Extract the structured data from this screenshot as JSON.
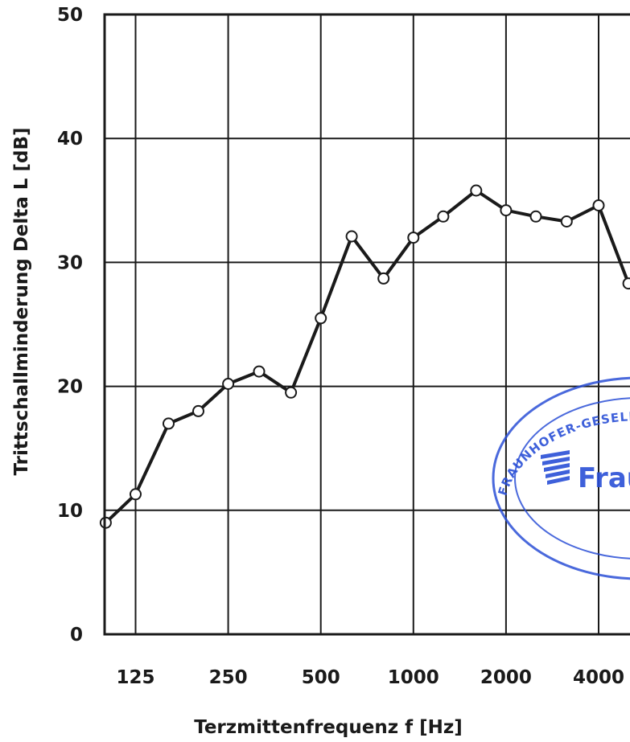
{
  "chart_data": {
    "type": "line",
    "title": "",
    "xlabel": "Terzmittenfrequenz f [Hz]",
    "ylabel": "Trittschallminderung Delta L [dB]",
    "xscale": "log",
    "xlim": [
      90,
      5000
    ],
    "ylim": [
      0,
      50
    ],
    "yticks": [
      0,
      10,
      20,
      30,
      40,
      50
    ],
    "xticks": [
      125,
      250,
      500,
      1000,
      2000,
      4000
    ],
    "x_tick_labels": [
      "125",
      "250",
      "500",
      "1000",
      "2000",
      "4000"
    ],
    "grid": true,
    "legend": "none",
    "series": [
      {
        "x": [
          100,
          125,
          160,
          200,
          250,
          315,
          400,
          500,
          630,
          800,
          1000,
          1250,
          1600,
          2000,
          2500,
          3150,
          4000,
          5000
        ],
        "values": [
          9.0,
          11.3,
          17.0,
          18.0,
          20.2,
          21.2,
          19.5,
          25.5,
          32.1,
          28.7,
          32.0,
          33.7,
          35.8,
          34.2,
          33.7,
          33.3,
          34.6,
          28.3
        ],
        "color": "#1a1a1a"
      }
    ]
  },
  "stamp": {
    "ring_text": "FRAUNHOFER-GESELLSCHAFT ZUR FÖRDERUNG",
    "brand": "Fraunhofer",
    "color": "#2a4fd6"
  }
}
